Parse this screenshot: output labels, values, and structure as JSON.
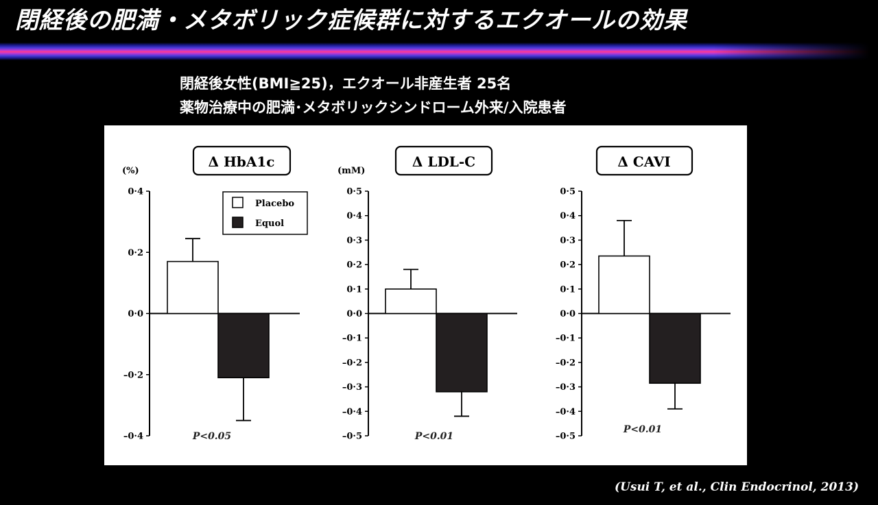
{
  "slide": {
    "title": "閉経後の肥満・メタボリック症候群に対するエクオールの効果",
    "subtitle_line1": "閉経後女性(BMI≧25)，エクオール非産生者 25名",
    "subtitle_line2": "薬物治療中の肥満･メタボリックシンドローム外来/入院患者",
    "citation": "(Usui T, et al., Clin Endocrinol, 2013)"
  },
  "legend": {
    "placebo_label": "Placebo",
    "equol_label": "Equol",
    "placebo_color": "#ffffff",
    "equol_color": "#231f20"
  },
  "chart_data": [
    {
      "type": "bar",
      "title": "Δ HbA1c",
      "unit_label": "(%)",
      "ylim": [
        -0.4,
        0.4
      ],
      "yticks": [
        0.4,
        0.2,
        0.0,
        -0.2,
        -0.4
      ],
      "ytick_labels": [
        "0·4",
        "0·2",
        "0·0",
        "–0·2",
        "–0·4"
      ],
      "categories": [
        "Placebo",
        "Equol"
      ],
      "series": [
        {
          "name": "Placebo",
          "value": 0.17,
          "error": 0.075
        },
        {
          "name": "Equol",
          "value": -0.21,
          "error": 0.14
        }
      ],
      "p_value": "P<0.05",
      "legend_shown": true
    },
    {
      "type": "bar",
      "title": "Δ LDL-C",
      "unit_label": "(mM)",
      "ylim": [
        -0.5,
        0.5
      ],
      "yticks": [
        0.5,
        0.4,
        0.3,
        0.2,
        0.1,
        0.0,
        -0.1,
        -0.2,
        -0.3,
        -0.4,
        -0.5
      ],
      "ytick_labels": [
        "0·5",
        "0·4",
        "0·3",
        "0·2",
        "0·1",
        "0·0",
        "–0·1",
        "–0·2",
        "–0·3",
        "–0·4",
        "–0·5"
      ],
      "categories": [
        "Placebo",
        "Equol"
      ],
      "series": [
        {
          "name": "Placebo",
          "value": 0.1,
          "error": 0.08
        },
        {
          "name": "Equol",
          "value": -0.32,
          "error": 0.1
        }
      ],
      "p_value": "P<0.01",
      "legend_shown": false
    },
    {
      "type": "bar",
      "title": "Δ CAVI",
      "unit_label": "",
      "ylim": [
        -0.5,
        0.5
      ],
      "yticks": [
        0.5,
        0.4,
        0.3,
        0.2,
        0.1,
        0.0,
        -0.1,
        -0.2,
        -0.3,
        -0.4,
        -0.5
      ],
      "ytick_labels": [
        "0·5",
        "0·4",
        "0·3",
        "0·2",
        "0·1",
        "0·0",
        "–0·1",
        "–0·2",
        "–0·3",
        "–0·4",
        "–0·5"
      ],
      "categories": [
        "Placebo",
        "Equol"
      ],
      "series": [
        {
          "name": "Placebo",
          "value": 0.235,
          "error": 0.145
        },
        {
          "name": "Equol",
          "value": -0.285,
          "error": 0.105
        }
      ],
      "p_value": "P<0.01",
      "legend_shown": false
    }
  ]
}
